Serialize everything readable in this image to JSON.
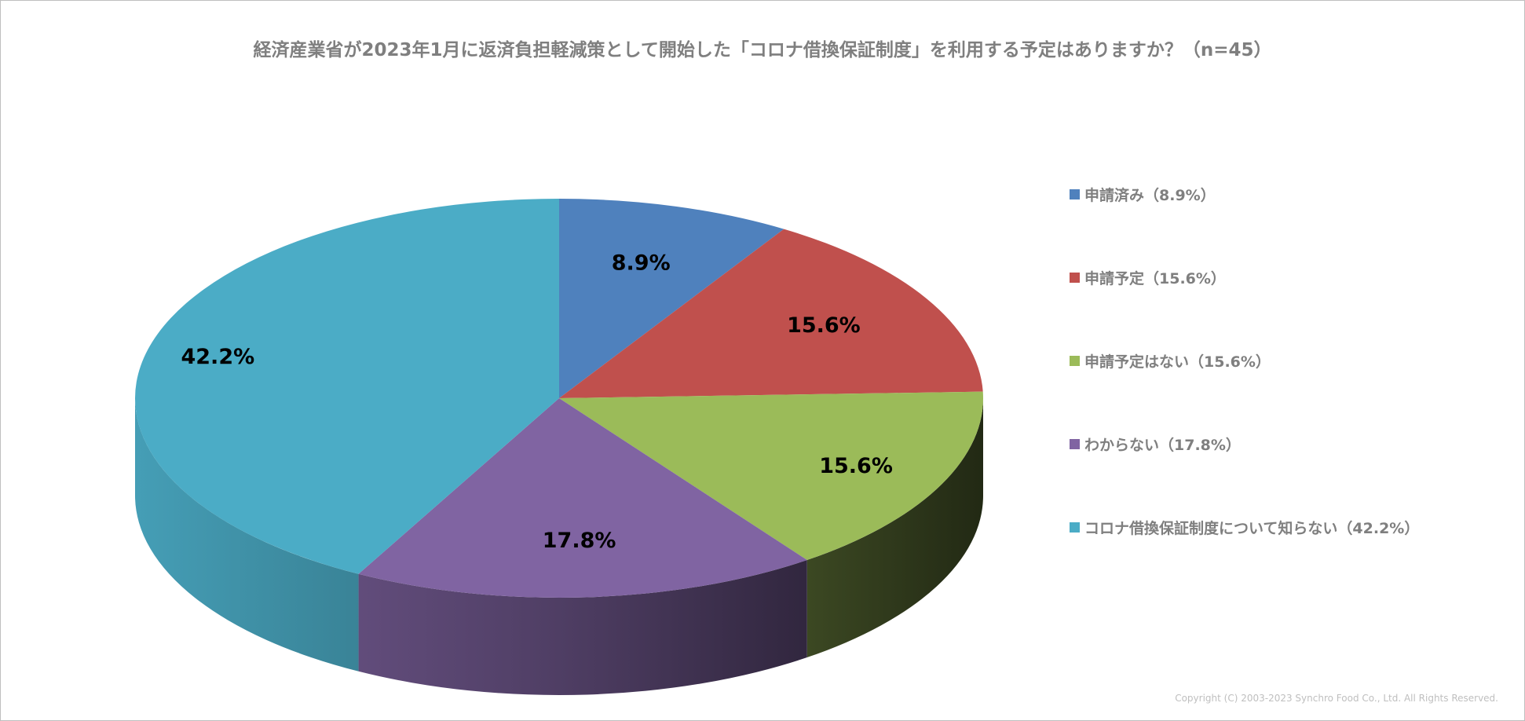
{
  "chart_data": {
    "type": "pie",
    "title": "経済産業省が2023年1月に返済負担軽減策として開始した「コロナ借換保証制度」を利用する予定はありますか？（n=45）",
    "categories": [
      "申請済み",
      "申請予定",
      "申請予定はない",
      "わからない",
      "コロナ借換保証制度について知らない"
    ],
    "values": [
      8.9,
      15.6,
      15.6,
      17.8,
      42.2
    ],
    "unit": "%",
    "data_labels": [
      "8.9%",
      "15.6%",
      "15.6%",
      "17.8%",
      "42.2%"
    ],
    "legend_labels": [
      "申請済み（8.9%）",
      "申請予定（15.6%）",
      "申請予定はない（15.6%）",
      "わからない（17.8%）",
      "コロナ借換保証制度について知らない（42.2%）"
    ],
    "colors": [
      "#4f81bd",
      "#c0504d",
      "#9bbb59",
      "#8064a2",
      "#4bacc6"
    ],
    "legend_position": "right",
    "style": "3d"
  },
  "copyright": "Copyright (C) 2003-2023   Synchro Food Co., Ltd. All Rights Reserved."
}
